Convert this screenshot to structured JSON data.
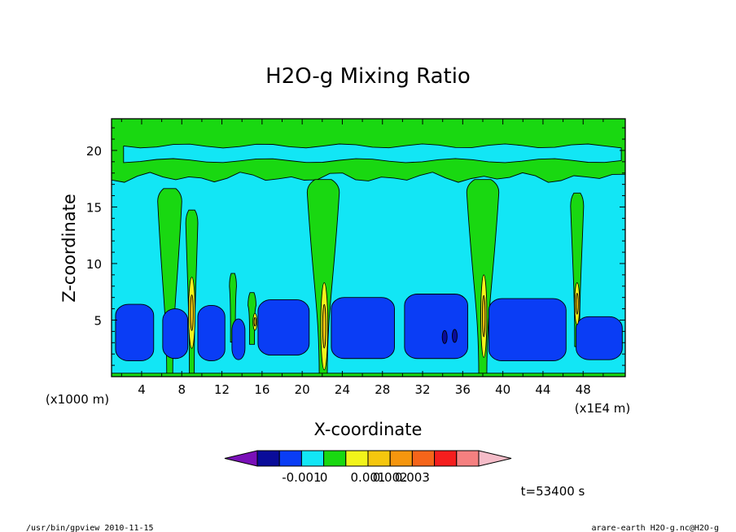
{
  "chart_data": {
    "type": "contour",
    "title": "H2O-g Mixing Ratio",
    "xlabel": "X-coordinate",
    "ylabel": "Z-coordinate",
    "x_unit_left": "(x1000 m)",
    "x_unit_right": "(x1E4 m)",
    "x_ticks": [
      "4",
      "8",
      "12",
      "16",
      "20",
      "24",
      "28",
      "32",
      "36",
      "40",
      "44",
      "48"
    ],
    "y_ticks": [
      "5",
      "10",
      "15",
      "20"
    ],
    "xlim": [
      1,
      52.2
    ],
    "ylim": [
      0,
      22.8
    ],
    "time_label": "t=53400 s",
    "colorbar": {
      "colors": [
        "#7a10b8",
        "#0a0c9a",
        "#0a3df5",
        "#12e6f5",
        "#19d811",
        "#f2f41a",
        "#f5c70e",
        "#f5960e",
        "#f5651a",
        "#f51e1e",
        "#f58080",
        "#f5bcc8"
      ],
      "tick_labels": [
        "-0.001",
        "0",
        "0.001",
        "0.002",
        "0.003"
      ]
    },
    "field_colors": {
      "background": "#12e6f5",
      "moist": "#19d811",
      "dry": "#0a3df5",
      "driest": "#0a0c9a",
      "wet1": "#f2f41a",
      "wet2": "#f5c70e"
    },
    "dry_cells": [
      {
        "x0": 1.4,
        "x1": 5.2,
        "ztop": 6.4,
        "zbot": 1.4
      },
      {
        "x0": 6.1,
        "x1": 8.6,
        "ztop": 6.0,
        "zbot": 1.6
      },
      {
        "x0": 9.6,
        "x1": 12.3,
        "ztop": 6.3,
        "zbot": 1.4
      },
      {
        "x0": 13.0,
        "x1": 14.3,
        "ztop": 5.1,
        "zbot": 1.5
      },
      {
        "x0": 15.6,
        "x1": 20.7,
        "ztop": 6.8,
        "zbot": 1.9
      },
      {
        "x0": 22.9,
        "x1": 29.2,
        "ztop": 7.0,
        "zbot": 1.6
      },
      {
        "x0": 30.2,
        "x1": 36.5,
        "ztop": 7.3,
        "zbot": 1.6
      },
      {
        "x0": 38.6,
        "x1": 46.3,
        "ztop": 6.9,
        "zbot": 1.4
      },
      {
        "x0": 47.3,
        "x1": 51.9,
        "ztop": 5.3,
        "zbot": 1.5
      }
    ],
    "moist_plumes": [
      {
        "x": 6.8,
        "zbase": 0.0,
        "ztop": 16.2,
        "w": 2.4
      },
      {
        "x": 9.0,
        "zbase": 0.0,
        "ztop": 14.3,
        "w": 1.2
      },
      {
        "x": 13.1,
        "zbase": 3.2,
        "ztop": 8.7,
        "w": 0.7
      },
      {
        "x": 15.0,
        "zbase": 3.0,
        "ztop": 7.0,
        "w": 0.8
      },
      {
        "x": 22.1,
        "zbase": 0.0,
        "ztop": 17.0,
        "w": 3.2
      },
      {
        "x": 38.0,
        "zbase": 0.0,
        "ztop": 17.0,
        "w": 3.2
      },
      {
        "x": 47.4,
        "zbase": 2.8,
        "ztop": 15.8,
        "w": 1.3
      }
    ],
    "wet_cores": [
      {
        "x": 9.0,
        "zbot": 2.5,
        "ztop": 8.8,
        "w": 0.65
      },
      {
        "x": 22.2,
        "zbot": 0.6,
        "ztop": 8.3,
        "w": 0.7
      },
      {
        "x": 38.1,
        "zbot": 1.7,
        "ztop": 9.0,
        "w": 0.6
      },
      {
        "x": 47.4,
        "zbot": 4.6,
        "ztop": 8.3,
        "w": 0.5
      },
      {
        "x": 15.3,
        "zbot": 4.1,
        "ztop": 5.6,
        "w": 0.3
      }
    ],
    "top_layer": {
      "band_bottom": 17.6,
      "dry_band": [
        19.1,
        20.4
      ],
      "band_top": 21.4,
      "top": 22.8
    }
  },
  "footer": {
    "left_text": "/usr/bin/gpview   2010-11-15",
    "right_text": "arare-earth_H2O-g.nc@H2O-g"
  }
}
